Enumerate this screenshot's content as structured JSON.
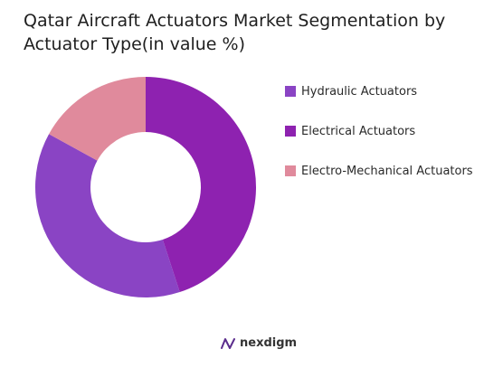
{
  "chart_data": {
    "type": "pie",
    "title": "Qatar Aircraft Actuators Market Segmentation by Actuator Type(in value %)",
    "categories": [
      "Hydraulic Actuators",
      "Electrical Actuators",
      "Electro-Mechanical Actuators"
    ],
    "values": [
      38,
      45,
      17
    ],
    "colors": [
      "#8A44C4",
      "#8E22B0",
      "#E08A9C"
    ],
    "legend_position": "right",
    "donut": true
  },
  "branding": {
    "logo_text": "nexdigm",
    "logo_icon": "nexdigm-logo-icon"
  }
}
